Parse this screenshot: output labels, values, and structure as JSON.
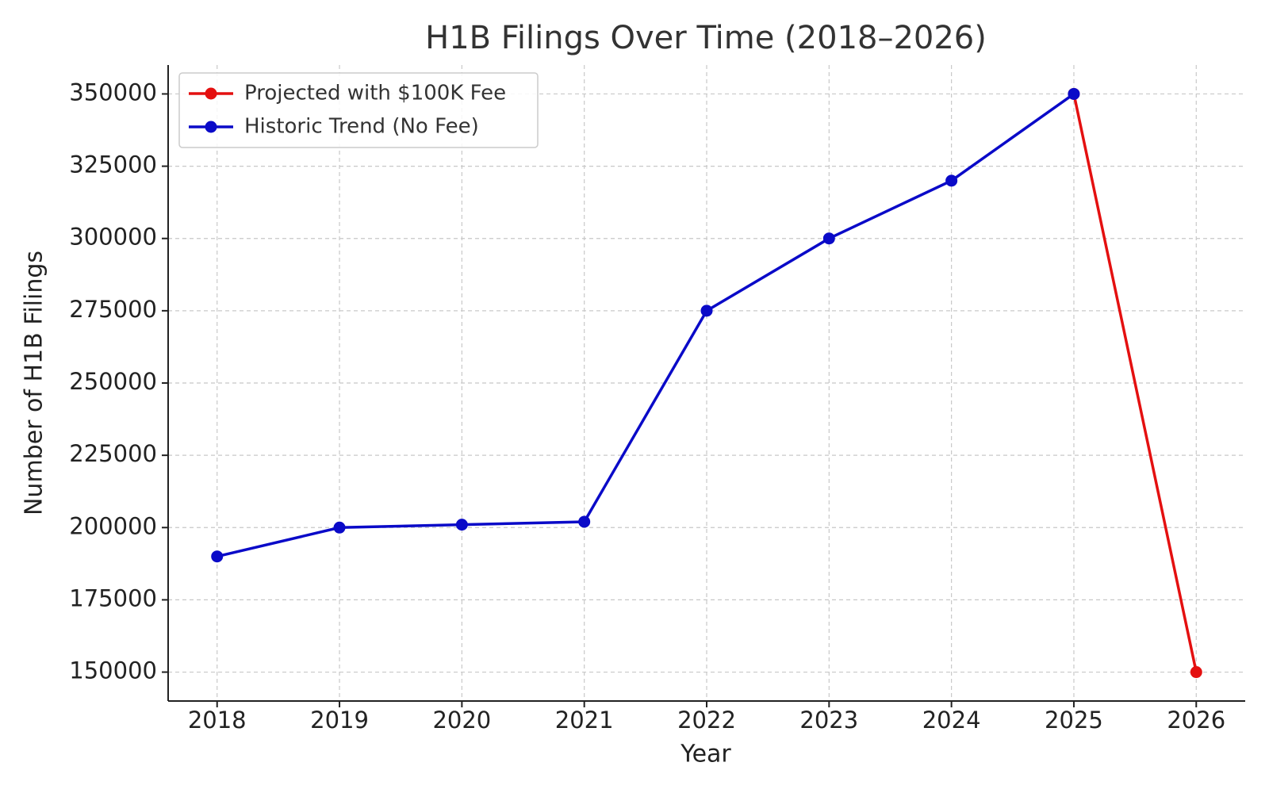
{
  "chart_data": {
    "type": "line",
    "title": "H1B Filings Over Time (2018–2026)",
    "x_label": "Year",
    "y_label": "Number of H1B Filings",
    "x": [
      2018,
      2019,
      2020,
      2021,
      2022,
      2023,
      2024,
      2025,
      2026
    ],
    "series": [
      {
        "name": "Projected with $100K Fee",
        "color": "#e41010",
        "values": [
          null,
          null,
          null,
          null,
          null,
          null,
          null,
          350000,
          150000
        ]
      },
      {
        "name": "Historic Trend (No Fee)",
        "color": "#0a0ac8",
        "values": [
          190000,
          200000,
          201000,
          202000,
          275000,
          300000,
          320000,
          350000,
          null
        ]
      }
    ],
    "xlim": [
      2017.6,
      2026.4
    ],
    "xticks": [
      2018,
      2019,
      2020,
      2021,
      2022,
      2023,
      2024,
      2025,
      2026
    ],
    "ylim": [
      140000,
      360000
    ],
    "yticks": [
      150000,
      175000,
      200000,
      225000,
      250000,
      275000,
      300000,
      325000,
      350000
    ],
    "grid": true,
    "legend": "upper left"
  }
}
